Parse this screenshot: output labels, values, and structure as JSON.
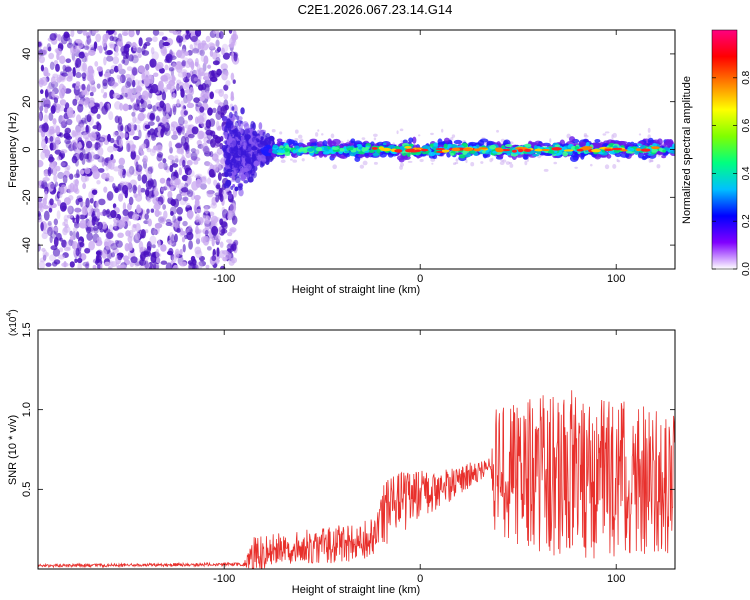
{
  "title": "C2E1.2026.067.23.14.G14",
  "colors": {
    "line": "#e8302c",
    "axis": "#000000",
    "speck_dark": "#4a10c0",
    "speck_light": "#c9a8f0",
    "band_core": "#ff2020",
    "band_mid": "#00e070",
    "band_outer": "#1a1aff"
  },
  "chart_data": [
    {
      "type": "heatmap",
      "title": "C2E1.2026.067.23.14.G14",
      "xlabel": "Height of straight line (km)",
      "ylabel": "Frequency (Hz)",
      "xlim": [
        -195,
        130
      ],
      "ylim": [
        -50,
        50
      ],
      "xticks": [
        -100,
        0,
        100
      ],
      "xtick_labels": [
        "-100",
        "0",
        "100"
      ],
      "yticks": [
        -40,
        -20,
        0,
        20,
        40
      ],
      "ytick_labels": [
        "-40",
        "-20",
        "0",
        "20",
        "40"
      ],
      "colorbar": {
        "label": "Normalized spectral amplitude",
        "range": [
          0,
          1
        ],
        "ticks": [
          0.0,
          0.2,
          0.4,
          0.6,
          0.8
        ],
        "tick_labels": [
          "0.0",
          "0.2",
          "0.4",
          "0.6",
          "0.8"
        ],
        "colormap": [
          "#ffffff",
          "#8000ff",
          "#0000ff",
          "#00c0ff",
          "#00ff80",
          "#80ff00",
          "#ffff00",
          "#ff8000",
          "#ff0000",
          "#ff0080"
        ]
      },
      "features": {
        "noise_region_x": [
          -195,
          -100
        ],
        "transition_x": [
          -100,
          -75
        ],
        "band_center_hz": 0,
        "band_halfwidth_hz": 4
      }
    },
    {
      "type": "line",
      "xlabel": "Height of straight line (km)",
      "ylabel": "SNR (10 * v/v)",
      "scale_label": "(x10",
      "scale_exp": "4",
      "scale_close": ")",
      "xlim": [
        -195,
        130
      ],
      "ylim": [
        0,
        1.5
      ],
      "xticks": [
        -100,
        0,
        100
      ],
      "xtick_labels": [
        "-100",
        "0",
        "100"
      ],
      "yticks": [
        0.5,
        1.0,
        1.5
      ],
      "ytick_labels": [
        "0.5",
        "1.0",
        "1.5"
      ],
      "envelope": [
        {
          "x": -195,
          "base": 0.02,
          "amp": 0.01
        },
        {
          "x": -90,
          "base": 0.03,
          "amp": 0.01
        },
        {
          "x": -85,
          "base": 0.08,
          "amp": 0.12
        },
        {
          "x": -70,
          "base": 0.13,
          "amp": 0.1
        },
        {
          "x": -30,
          "base": 0.17,
          "amp": 0.13
        },
        {
          "x": -22,
          "base": 0.2,
          "amp": 0.12
        },
        {
          "x": -20,
          "base": 0.32,
          "amp": 0.22
        },
        {
          "x": -10,
          "base": 0.42,
          "amp": 0.2
        },
        {
          "x": 10,
          "base": 0.5,
          "amp": 0.12
        },
        {
          "x": 36,
          "base": 0.65,
          "amp": 0.05
        },
        {
          "x": 38,
          "base": 0.6,
          "amp": 0.4
        },
        {
          "x": 75,
          "base": 0.6,
          "amp": 0.55
        },
        {
          "x": 130,
          "base": 0.55,
          "amp": 0.45
        }
      ]
    }
  ]
}
